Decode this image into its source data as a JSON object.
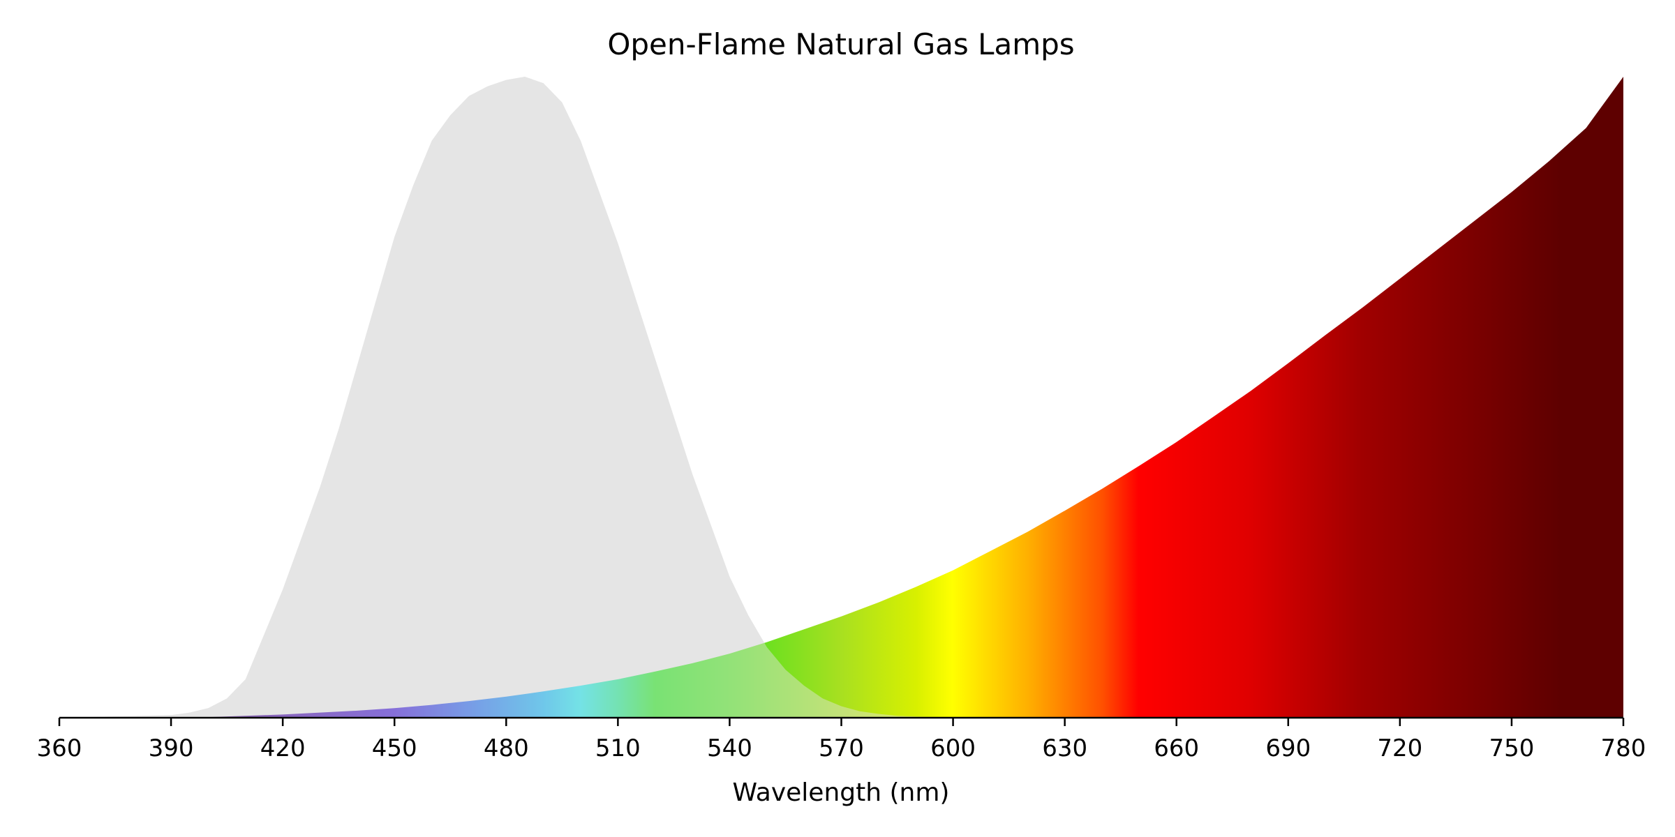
{
  "chart_data": {
    "type": "area",
    "title": "Open-Flame Natural Gas Lamps",
    "xlabel": "Wavelength (nm)",
    "ylabel": "",
    "xlim": [
      360,
      780
    ],
    "ylim": [
      0,
      1
    ],
    "x_ticks": [
      360,
      390,
      420,
      450,
      480,
      510,
      540,
      570,
      600,
      630,
      660,
      690,
      720,
      750,
      780
    ],
    "grid": false,
    "legend": "none",
    "series": [
      {
        "color": "#e5e5e5",
        "fill": "grey",
        "x": [
          360,
          390,
          395,
          400,
          405,
          410,
          415,
          420,
          425,
          430,
          435,
          440,
          445,
          450,
          455,
          460,
          465,
          470,
          475,
          480,
          485,
          490,
          495,
          500,
          505,
          510,
          515,
          520,
          525,
          530,
          535,
          540,
          545,
          550,
          555,
          560,
          565,
          570,
          575,
          580,
          585,
          590,
          595,
          600,
          780
        ],
        "y": [
          0,
          0.004,
          0.008,
          0.015,
          0.03,
          0.06,
          0.13,
          0.2,
          0.28,
          0.36,
          0.45,
          0.55,
          0.65,
          0.75,
          0.83,
          0.9,
          0.94,
          0.97,
          0.985,
          0.995,
          1.0,
          0.99,
          0.96,
          0.9,
          0.82,
          0.74,
          0.65,
          0.56,
          0.47,
          0.38,
          0.3,
          0.22,
          0.16,
          0.11,
          0.075,
          0.05,
          0.03,
          0.018,
          0.01,
          0.006,
          0.003,
          0.002,
          0.001,
          0.0005,
          0
        ]
      },
      {
        "fill": "visible-spectrum-gradient",
        "x": [
          360,
          390,
          400,
          410,
          420,
          430,
          440,
          450,
          460,
          470,
          480,
          490,
          500,
          510,
          520,
          530,
          540,
          550,
          560,
          570,
          580,
          590,
          600,
          610,
          620,
          630,
          640,
          650,
          660,
          670,
          680,
          690,
          700,
          710,
          720,
          730,
          740,
          750,
          760,
          770,
          780
        ],
        "y": [
          0,
          0.0,
          0.001,
          0.003,
          0.005,
          0.008,
          0.011,
          0.015,
          0.02,
          0.026,
          0.033,
          0.041,
          0.05,
          0.06,
          0.072,
          0.085,
          0.1,
          0.118,
          0.138,
          0.158,
          0.18,
          0.204,
          0.23,
          0.26,
          0.29,
          0.323,
          0.357,
          0.393,
          0.43,
          0.47,
          0.51,
          0.553,
          0.597,
          0.64,
          0.685,
          0.73,
          0.775,
          0.82,
          0.868,
          0.92,
          1.0
        ]
      }
    ]
  }
}
